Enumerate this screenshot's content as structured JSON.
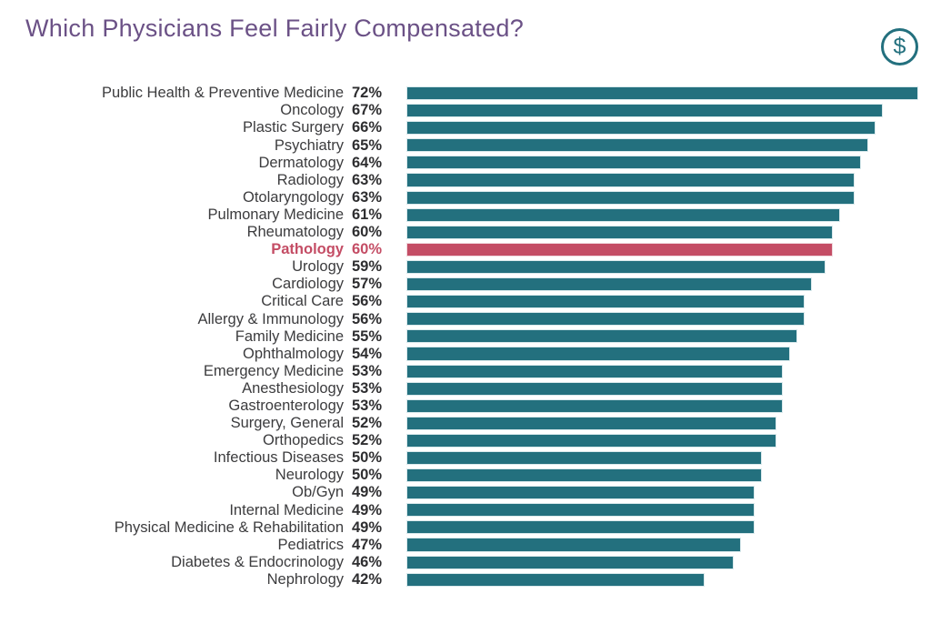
{
  "title": "Which Physicians Feel Fairly Compensated?",
  "icon": {
    "name": "dollar-icon",
    "symbol": "$"
  },
  "colors": {
    "bar": "#23707E",
    "highlight": "#C44D65",
    "title": "#6B5186",
    "label": "#3C3C3E",
    "value": "#2E2E30"
  },
  "chart_data": {
    "type": "bar",
    "orientation": "horizontal",
    "title": "Which Physicians Feel Fairly Compensated?",
    "value_suffix": "%",
    "xlim": [
      0,
      72
    ],
    "grid": false,
    "legend": false,
    "highlight_category": "Pathology",
    "categories": [
      "Public Health & Preventive Medicine",
      "Oncology",
      "Plastic Surgery",
      "Psychiatry",
      "Dermatology",
      "Radiology",
      "Otolaryngology",
      "Pulmonary Medicine",
      "Rheumatology",
      "Pathology",
      "Urology",
      "Cardiology",
      "Critical Care",
      "Allergy & Immunology",
      "Family Medicine",
      "Ophthalmology",
      "Emergency Medicine",
      "Anesthesiology",
      "Gastroenterology",
      "Surgery, General",
      "Orthopedics",
      "Infectious Diseases",
      "Neurology",
      "Ob/Gyn",
      "Internal Medicine",
      "Physical Medicine & Rehabilitation",
      "Pediatrics",
      "Diabetes & Endocrinology",
      "Nephrology"
    ],
    "values": [
      72,
      67,
      66,
      65,
      64,
      63,
      63,
      61,
      60,
      60,
      59,
      57,
      56,
      56,
      55,
      54,
      53,
      53,
      53,
      52,
      52,
      50,
      50,
      49,
      49,
      49,
      47,
      46,
      42
    ],
    "value_labels": [
      "72%",
      "67%",
      "66%",
      "65%",
      "64%",
      "63%",
      "63%",
      "61%",
      "60%",
      "60%",
      "59%",
      "57%",
      "56%",
      "56%",
      "55%",
      "54%",
      "53%",
      "53%",
      "53%",
      "52%",
      "52%",
      "50%",
      "50%",
      "49%",
      "49%",
      "49%",
      "47%",
      "46%",
      "42%"
    ]
  }
}
